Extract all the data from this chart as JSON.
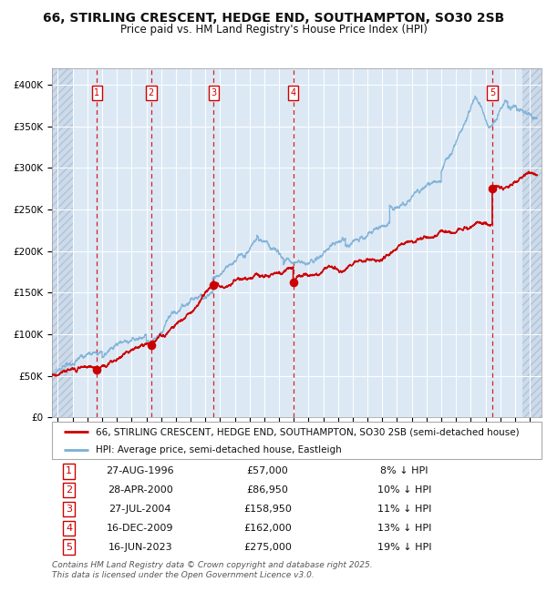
{
  "title": "66, STIRLING CRESCENT, HEDGE END, SOUTHAMPTON, SO30 2SB",
  "subtitle": "Price paid vs. HM Land Registry's House Price Index (HPI)",
  "ylim": [
    0,
    420000
  ],
  "yticks": [
    0,
    50000,
    100000,
    150000,
    200000,
    250000,
    300000,
    350000,
    400000
  ],
  "xlim_start": 1993.6,
  "xlim_end": 2026.8,
  "bg_color": "#dce9f5",
  "grid_color": "#ffffff",
  "sale_dates_x": [
    1996.653,
    2000.325,
    2004.572,
    2009.958,
    2023.458
  ],
  "sale_prices_y": [
    57000,
    86950,
    158950,
    162000,
    275000
  ],
  "sale_labels": [
    "1",
    "2",
    "3",
    "4",
    "5"
  ],
  "vline_color": "#cc0000",
  "sale_marker_color": "#cc0000",
  "hpi_line_color": "#7bafd4",
  "price_line_color": "#cc0000",
  "legend_label_price": "66, STIRLING CRESCENT, HEDGE END, SOUTHAMPTON, SO30 2SB (semi-detached house)",
  "legend_label_hpi": "HPI: Average price, semi-detached house, Eastleigh",
  "table_data": [
    [
      "1",
      "27-AUG-1996",
      "£57,000",
      "8% ↓ HPI"
    ],
    [
      "2",
      "28-APR-2000",
      "£86,950",
      "10% ↓ HPI"
    ],
    [
      "3",
      "27-JUL-2004",
      "£158,950",
      "11% ↓ HPI"
    ],
    [
      "4",
      "16-DEC-2009",
      "£162,000",
      "13% ↓ HPI"
    ],
    [
      "5",
      "16-JUN-2023",
      "£275,000",
      "19% ↓ HPI"
    ]
  ],
  "footer": "Contains HM Land Registry data © Crown copyright and database right 2025.\nThis data is licensed under the Open Government Licence v3.0.",
  "title_fontsize": 10,
  "subtitle_fontsize": 8.5,
  "tick_fontsize": 7.5,
  "legend_fontsize": 7.5,
  "table_fontsize": 8,
  "footer_fontsize": 6.5
}
